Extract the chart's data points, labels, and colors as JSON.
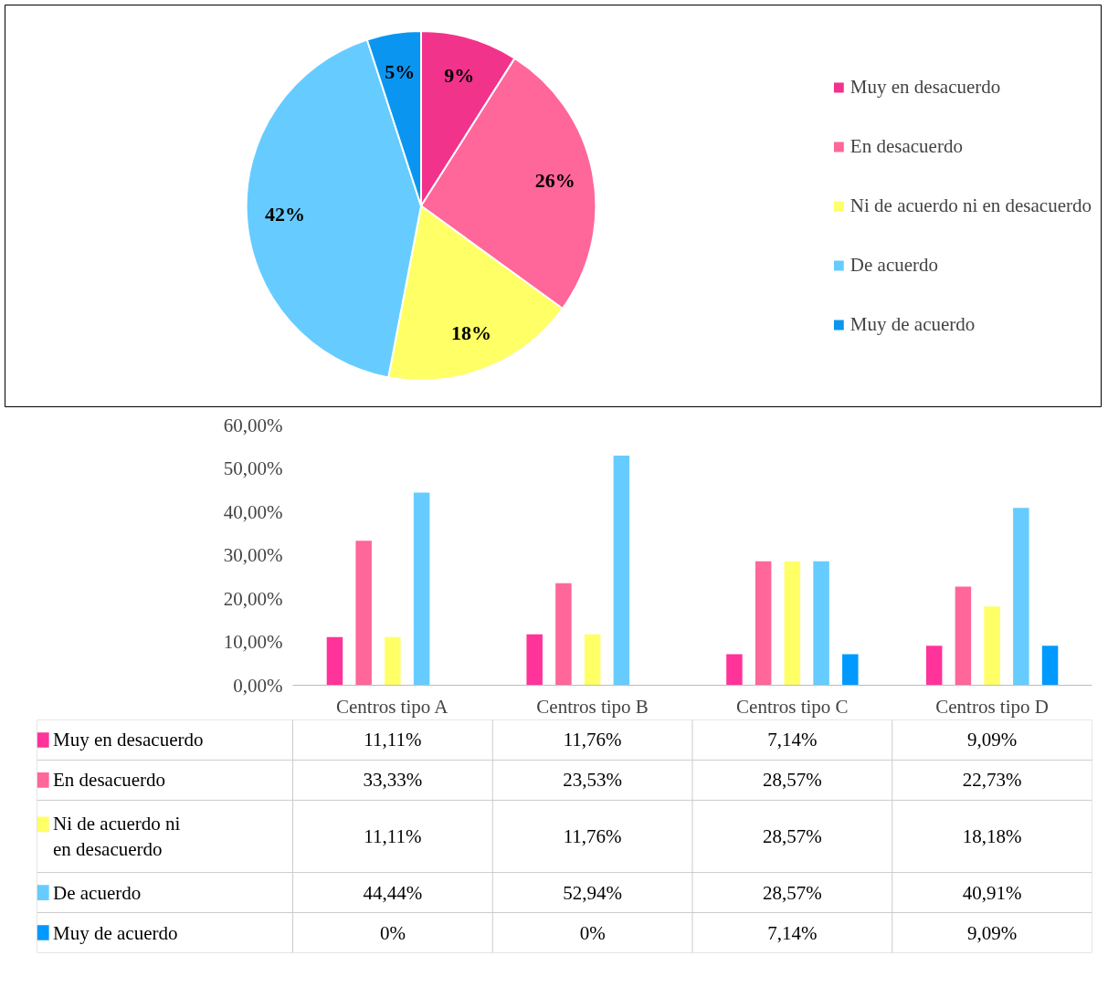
{
  "chart_data": [
    {
      "type": "pie",
      "categories": [
        "Muy en desacuerdo",
        "En desacuerdo",
        "Ni de acuerdo ni en desacuerdo",
        "De acuerdo",
        "Muy de acuerdo"
      ],
      "values": [
        9,
        26,
        18,
        42,
        5
      ],
      "value_labels": [
        "9%",
        "26%",
        "18%",
        "42%",
        "5%"
      ],
      "colors": [
        "#f2338c",
        "#ff6699",
        "#ffff66",
        "#66ccff",
        "#0a96f0"
      ],
      "legend": "right"
    },
    {
      "type": "bar",
      "categories": [
        "Centros tipo A",
        "Centros tipo B",
        "Centros tipo C",
        "Centros tipo D"
      ],
      "ylim": [
        0,
        60
      ],
      "yticks": [
        {
          "value": 0,
          "label": "0,00%"
        },
        {
          "value": 10,
          "label": "10,00%"
        },
        {
          "value": 20,
          "label": "20,00%"
        },
        {
          "value": 30,
          "label": "30,00%"
        },
        {
          "value": 40,
          "label": "40,00%"
        },
        {
          "value": 50,
          "label": "50,00%"
        },
        {
          "value": 60,
          "label": "60,00%"
        }
      ],
      "grid": false,
      "legend": "bottom left",
      "series": [
        {
          "name": "Muy en desacuerdo",
          "color": "#ff3399",
          "values": [
            11.11,
            11.76,
            7.14,
            9.09
          ],
          "value_labels": [
            "11,11%",
            "11,76%",
            "7,14%",
            "9,09%"
          ]
        },
        {
          "name": "En desacuerdo",
          "color": "#ff6699",
          "values": [
            33.33,
            23.53,
            28.57,
            22.73
          ],
          "value_labels": [
            "33,33%",
            "23,53%",
            "28,57%",
            "22,73%"
          ]
        },
        {
          "name": "Ni de acuerdo ni en desacuerdo",
          "color": "#ffff66",
          "values": [
            11.11,
            11.76,
            28.57,
            18.18
          ],
          "value_labels": [
            "11,11%",
            "11,76%",
            "28,57%",
            "18,18%"
          ]
        },
        {
          "name": "De acuerdo",
          "color": "#66ccff",
          "values": [
            44.44,
            52.94,
            28.57,
            40.91
          ],
          "value_labels": [
            "44,44%",
            "52,94%",
            "28,57%",
            "40,91%"
          ]
        },
        {
          "name": "Muy de acuerdo",
          "color": "#0099ff",
          "values": [
            0,
            0,
            7.14,
            9.09
          ],
          "value_labels": [
            "0%",
            "0%",
            "7,14%",
            "9,09%"
          ]
        }
      ]
    }
  ]
}
